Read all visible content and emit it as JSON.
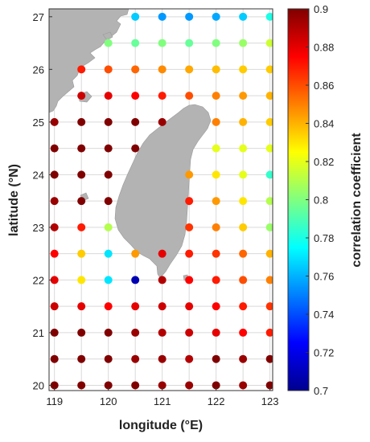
{
  "chart_data": {
    "type": "scatter",
    "xlabel": "longitude (°E)",
    "ylabel": "latitude (°N)",
    "colorbar_label": "correlation coefficient",
    "xlim": [
      118.9,
      123.05
    ],
    "ylim": [
      19.9,
      27.15
    ],
    "clim": [
      0.7,
      0.9
    ],
    "colormap": "jet",
    "grid": true,
    "x_ticks": [
      "119",
      "120",
      "121",
      "122",
      "123"
    ],
    "x_tick_values": [
      119,
      120,
      121,
      122,
      123
    ],
    "y_ticks": [
      "20",
      "21",
      "22",
      "23",
      "24",
      "25",
      "26",
      "27"
    ],
    "y_tick_values": [
      20,
      21,
      22,
      23,
      24,
      25,
      26,
      27
    ],
    "colorbar_ticks": [
      "0.7",
      "0.72",
      "0.74",
      "0.76",
      "0.78",
      "0.8",
      "0.82",
      "0.84",
      "0.86",
      "0.88",
      "0.9"
    ],
    "colorbar_tick_values": [
      0.7,
      0.72,
      0.74,
      0.76,
      0.78,
      0.8,
      0.82,
      0.84,
      0.86,
      0.88,
      0.9
    ],
    "points": [
      {
        "lon": 120.5,
        "lat": 27,
        "r": 0.765
      },
      {
        "lon": 121,
        "lat": 27,
        "r": 0.755
      },
      {
        "lon": 121.5,
        "lat": 27,
        "r": 0.755
      },
      {
        "lon": 122,
        "lat": 27,
        "r": 0.758
      },
      {
        "lon": 122.5,
        "lat": 27,
        "r": 0.765
      },
      {
        "lon": 123,
        "lat": 27,
        "r": 0.78
      },
      {
        "lon": 120,
        "lat": 26.5,
        "r": 0.8
      },
      {
        "lon": 120.5,
        "lat": 26.5,
        "r": 0.795
      },
      {
        "lon": 121,
        "lat": 26.5,
        "r": 0.8
      },
      {
        "lon": 121.5,
        "lat": 26.5,
        "r": 0.795
      },
      {
        "lon": 122,
        "lat": 26.5,
        "r": 0.8
      },
      {
        "lon": 122.5,
        "lat": 26.5,
        "r": 0.805
      },
      {
        "lon": 123,
        "lat": 26.5,
        "r": 0.815
      },
      {
        "lon": 119.5,
        "lat": 26,
        "r": 0.87
      },
      {
        "lon": 120,
        "lat": 26,
        "r": 0.86
      },
      {
        "lon": 120.5,
        "lat": 26,
        "r": 0.855
      },
      {
        "lon": 121,
        "lat": 26,
        "r": 0.848
      },
      {
        "lon": 121.5,
        "lat": 26,
        "r": 0.842
      },
      {
        "lon": 122,
        "lat": 26,
        "r": 0.838
      },
      {
        "lon": 122.5,
        "lat": 26,
        "r": 0.835
      },
      {
        "lon": 123,
        "lat": 26,
        "r": 0.835
      },
      {
        "lon": 119.5,
        "lat": 25.5,
        "r": 0.885
      },
      {
        "lon": 120,
        "lat": 25.5,
        "r": 0.88
      },
      {
        "lon": 120.5,
        "lat": 25.5,
        "r": 0.875
      },
      {
        "lon": 121,
        "lat": 25.5,
        "r": 0.87
      },
      {
        "lon": 121.5,
        "lat": 25.5,
        "r": 0.86
      },
      {
        "lon": 122,
        "lat": 25.5,
        "r": 0.85
      },
      {
        "lon": 122.5,
        "lat": 25.5,
        "r": 0.845
      },
      {
        "lon": 123,
        "lat": 25.5,
        "r": 0.84
      },
      {
        "lon": 119,
        "lat": 25,
        "r": 0.895
      },
      {
        "lon": 119.5,
        "lat": 25,
        "r": 0.9
      },
      {
        "lon": 120,
        "lat": 25,
        "r": 0.9
      },
      {
        "lon": 120.5,
        "lat": 25,
        "r": 0.9
      },
      {
        "lon": 121,
        "lat": 25,
        "r": 0.895
      },
      {
        "lon": 122,
        "lat": 25,
        "r": 0.85
      },
      {
        "lon": 122.5,
        "lat": 25,
        "r": 0.84
      },
      {
        "lon": 123,
        "lat": 25,
        "r": 0.835
      },
      {
        "lon": 119,
        "lat": 24.5,
        "r": 0.9
      },
      {
        "lon": 119.5,
        "lat": 24.5,
        "r": 0.9
      },
      {
        "lon": 120,
        "lat": 24.5,
        "r": 0.9
      },
      {
        "lon": 120.5,
        "lat": 24.5,
        "r": 0.9
      },
      {
        "lon": 122,
        "lat": 24.5,
        "r": 0.82
      },
      {
        "lon": 122.5,
        "lat": 24.5,
        "r": 0.82
      },
      {
        "lon": 123,
        "lat": 24.5,
        "r": 0.82
      },
      {
        "lon": 119,
        "lat": 24,
        "r": 0.9
      },
      {
        "lon": 119.5,
        "lat": 24,
        "r": 0.9
      },
      {
        "lon": 120,
        "lat": 24,
        "r": 0.9
      },
      {
        "lon": 121.5,
        "lat": 24,
        "r": 0.845
      },
      {
        "lon": 122,
        "lat": 24,
        "r": 0.83
      },
      {
        "lon": 122.5,
        "lat": 24,
        "r": 0.82
      },
      {
        "lon": 123,
        "lat": 24,
        "r": 0.785
      },
      {
        "lon": 119,
        "lat": 23.5,
        "r": 0.895
      },
      {
        "lon": 119.5,
        "lat": 23.5,
        "r": 0.9
      },
      {
        "lon": 120,
        "lat": 23.5,
        "r": 0.9
      },
      {
        "lon": 121.5,
        "lat": 23.5,
        "r": 0.87
      },
      {
        "lon": 122,
        "lat": 23.5,
        "r": 0.845
      },
      {
        "lon": 122.5,
        "lat": 23.5,
        "r": 0.83
      },
      {
        "lon": 123,
        "lat": 23.5,
        "r": 0.81
      },
      {
        "lon": 119,
        "lat": 23,
        "r": 0.89
      },
      {
        "lon": 119.5,
        "lat": 23,
        "r": 0.87
      },
      {
        "lon": 120,
        "lat": 23,
        "r": 0.81
      },
      {
        "lon": 121.5,
        "lat": 23,
        "r": 0.865
      },
      {
        "lon": 122,
        "lat": 23,
        "r": 0.85
      },
      {
        "lon": 122.5,
        "lat": 23,
        "r": 0.835
      },
      {
        "lon": 123,
        "lat": 23,
        "r": 0.805
      },
      {
        "lon": 119,
        "lat": 22.5,
        "r": 0.875
      },
      {
        "lon": 119.5,
        "lat": 22.5,
        "r": 0.835
      },
      {
        "lon": 120,
        "lat": 22.5,
        "r": 0.77
      },
      {
        "lon": 120.5,
        "lat": 22.5,
        "r": 0.845
      },
      {
        "lon": 121,
        "lat": 22.5,
        "r": 0.88
      },
      {
        "lon": 121.5,
        "lat": 22.5,
        "r": 0.87
      },
      {
        "lon": 122,
        "lat": 22.5,
        "r": 0.865
      },
      {
        "lon": 122.5,
        "lat": 22.5,
        "r": 0.855
      },
      {
        "lon": 123,
        "lat": 22.5,
        "r": 0.84
      },
      {
        "lon": 119,
        "lat": 22,
        "r": 0.88
      },
      {
        "lon": 119.5,
        "lat": 22,
        "r": 0.83
      },
      {
        "lon": 120,
        "lat": 22,
        "r": 0.77
      },
      {
        "lon": 120.5,
        "lat": 22,
        "r": 0.71
      },
      {
        "lon": 121,
        "lat": 22,
        "r": 0.89
      },
      {
        "lon": 121.5,
        "lat": 22,
        "r": 0.875
      },
      {
        "lon": 122,
        "lat": 22,
        "r": 0.87
      },
      {
        "lon": 122.5,
        "lat": 22,
        "r": 0.86
      },
      {
        "lon": 123,
        "lat": 22,
        "r": 0.85
      },
      {
        "lon": 119,
        "lat": 21.5,
        "r": 0.885
      },
      {
        "lon": 119.5,
        "lat": 21.5,
        "r": 0.88
      },
      {
        "lon": 120,
        "lat": 21.5,
        "r": 0.875
      },
      {
        "lon": 120.5,
        "lat": 21.5,
        "r": 0.88
      },
      {
        "lon": 121,
        "lat": 21.5,
        "r": 0.885
      },
      {
        "lon": 121.5,
        "lat": 21.5,
        "r": 0.88
      },
      {
        "lon": 122,
        "lat": 21.5,
        "r": 0.875
      },
      {
        "lon": 122.5,
        "lat": 21.5,
        "r": 0.87
      },
      {
        "lon": 123,
        "lat": 21.5,
        "r": 0.865
      },
      {
        "lon": 119,
        "lat": 21,
        "r": 0.9
      },
      {
        "lon": 119.5,
        "lat": 21,
        "r": 0.9
      },
      {
        "lon": 120,
        "lat": 21,
        "r": 0.9
      },
      {
        "lon": 120.5,
        "lat": 21,
        "r": 0.895
      },
      {
        "lon": 121,
        "lat": 21,
        "r": 0.89
      },
      {
        "lon": 121.5,
        "lat": 21,
        "r": 0.885
      },
      {
        "lon": 122,
        "lat": 21,
        "r": 0.88
      },
      {
        "lon": 122.5,
        "lat": 21,
        "r": 0.875
      },
      {
        "lon": 123,
        "lat": 21,
        "r": 0.87
      },
      {
        "lon": 119,
        "lat": 20.5,
        "r": 0.9
      },
      {
        "lon": 119.5,
        "lat": 20.5,
        "r": 0.9
      },
      {
        "lon": 120,
        "lat": 20.5,
        "r": 0.9
      },
      {
        "lon": 120.5,
        "lat": 20.5,
        "r": 0.895
      },
      {
        "lon": 121,
        "lat": 20.5,
        "r": 0.895
      },
      {
        "lon": 121.5,
        "lat": 20.5,
        "r": 0.89
      },
      {
        "lon": 122,
        "lat": 20.5,
        "r": 0.9
      },
      {
        "lon": 122.5,
        "lat": 20.5,
        "r": 0.895
      },
      {
        "lon": 123,
        "lat": 20.5,
        "r": 0.9
      },
      {
        "lon": 119,
        "lat": 20,
        "r": 0.9
      },
      {
        "lon": 119.5,
        "lat": 20,
        "r": 0.9
      },
      {
        "lon": 120,
        "lat": 20,
        "r": 0.9
      },
      {
        "lon": 120.5,
        "lat": 20,
        "r": 0.9
      },
      {
        "lon": 121,
        "lat": 20,
        "r": 0.895
      },
      {
        "lon": 121.5,
        "lat": 20,
        "r": 0.895
      },
      {
        "lon": 122,
        "lat": 20,
        "r": 0.9
      },
      {
        "lon": 122.5,
        "lat": 20,
        "r": 0.895
      },
      {
        "lon": 123,
        "lat": 20,
        "r": 0.9
      }
    ]
  },
  "colors": {
    "land": "#b3b3b3",
    "grid": "#d9d9d9",
    "frame": "#333333"
  }
}
